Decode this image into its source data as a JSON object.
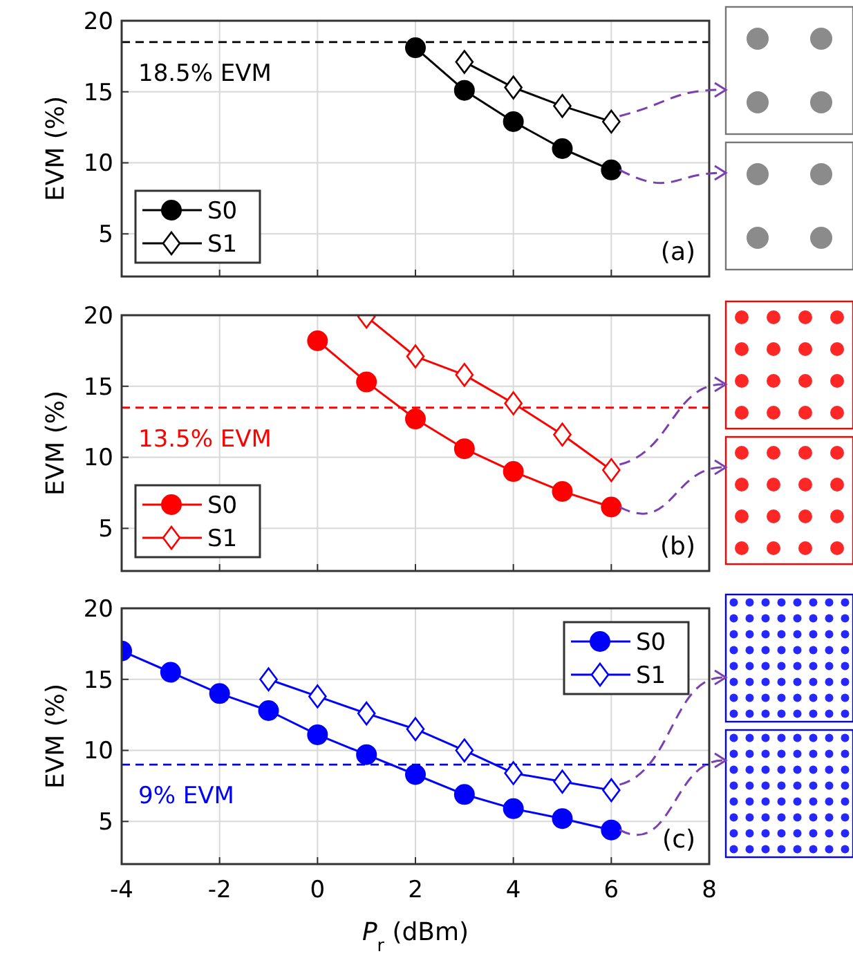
{
  "chart_data": [
    {
      "type": "line",
      "ylabel": "EVM (%)",
      "xlim": [
        -4,
        8
      ],
      "xticks": [
        -4,
        -2,
        0,
        2,
        4,
        6,
        8
      ],
      "ylim": [
        2,
        20
      ],
      "yticks": [
        5,
        10,
        15,
        20
      ],
      "grid": true,
      "legend": "bottom left",
      "tick_labels": "y",
      "annotations": [
        "(a)"
      ],
      "ref_lines": [
        {
          "axis": "y",
          "value": 18.5,
          "label": "18.5% EVM",
          "color": "#000000",
          "line_style": "dashed"
        }
      ],
      "series": [
        {
          "name": "S0",
          "color": "#000000",
          "marker": "circle",
          "x": [
            2,
            3,
            4,
            5,
            6
          ],
          "values": [
            18.1,
            15.1,
            12.9,
            11.0,
            9.5
          ]
        },
        {
          "name": "S1",
          "color": "#000000",
          "marker": "diamond",
          "x": [
            3,
            4,
            5,
            6
          ],
          "values": [
            17.1,
            15.3,
            14.0,
            12.9
          ]
        }
      ]
    },
    {
      "type": "line",
      "ylabel": "EVM (%)",
      "xlim": [
        -4,
        8
      ],
      "xticks": [
        -4,
        -2,
        0,
        2,
        4,
        6,
        8
      ],
      "ylim": [
        2,
        20
      ],
      "yticks": [
        5,
        10,
        15,
        20
      ],
      "grid": true,
      "legend": "bottom left",
      "tick_labels": "y",
      "annotations": [
        "(b)"
      ],
      "ref_lines": [
        {
          "axis": "y",
          "value": 13.5,
          "label": "13.5% EVM",
          "color": "#ff0000",
          "line_style": "dashed"
        }
      ],
      "series": [
        {
          "name": "S0",
          "color": "#ff0000",
          "marker": "circle",
          "x": [
            0,
            1,
            2,
            3,
            4,
            5,
            6
          ],
          "values": [
            18.2,
            15.3,
            12.7,
            10.6,
            9.0,
            7.6,
            6.5
          ]
        },
        {
          "name": "S1",
          "color": "#ff0000",
          "marker": "diamond",
          "x": [
            1,
            2,
            3,
            4,
            5,
            6
          ],
          "values": [
            19.9,
            17.1,
            15.8,
            13.8,
            11.6,
            9.1
          ]
        }
      ]
    },
    {
      "type": "line",
      "xlabel": "P$_{r}$ (dBm)",
      "ylabel": "EVM (%)",
      "xlim": [
        -4,
        8
      ],
      "xticks": [
        -4,
        -2,
        0,
        2,
        4,
        6,
        8
      ],
      "ylim": [
        2,
        20
      ],
      "yticks": [
        5,
        10,
        15,
        20
      ],
      "grid": true,
      "legend": "top right",
      "annotations": [
        "(c)"
      ],
      "ref_lines": [
        {
          "axis": "y",
          "value": 9,
          "label": "9% EVM",
          "color": "#0000ff",
          "line_style": "dashed"
        }
      ],
      "series": [
        {
          "name": "S0",
          "color": "#0000ff",
          "marker": "circle",
          "x": [
            -4,
            -3,
            -2,
            -1,
            0,
            1,
            2,
            3,
            4,
            5,
            6
          ],
          "values": [
            17.0,
            15.5,
            14.0,
            12.8,
            11.1,
            9.7,
            8.3,
            6.9,
            5.9,
            5.2,
            4.4
          ]
        },
        {
          "name": "S1",
          "color": "#0000ff",
          "marker": "diamond",
          "x": [
            -1,
            0,
            1,
            2,
            3,
            4,
            5,
            6
          ],
          "values": [
            15.0,
            13.8,
            12.6,
            11.5,
            10.0,
            8.4,
            7.8,
            7.2
          ]
        }
      ]
    }
  ]
}
